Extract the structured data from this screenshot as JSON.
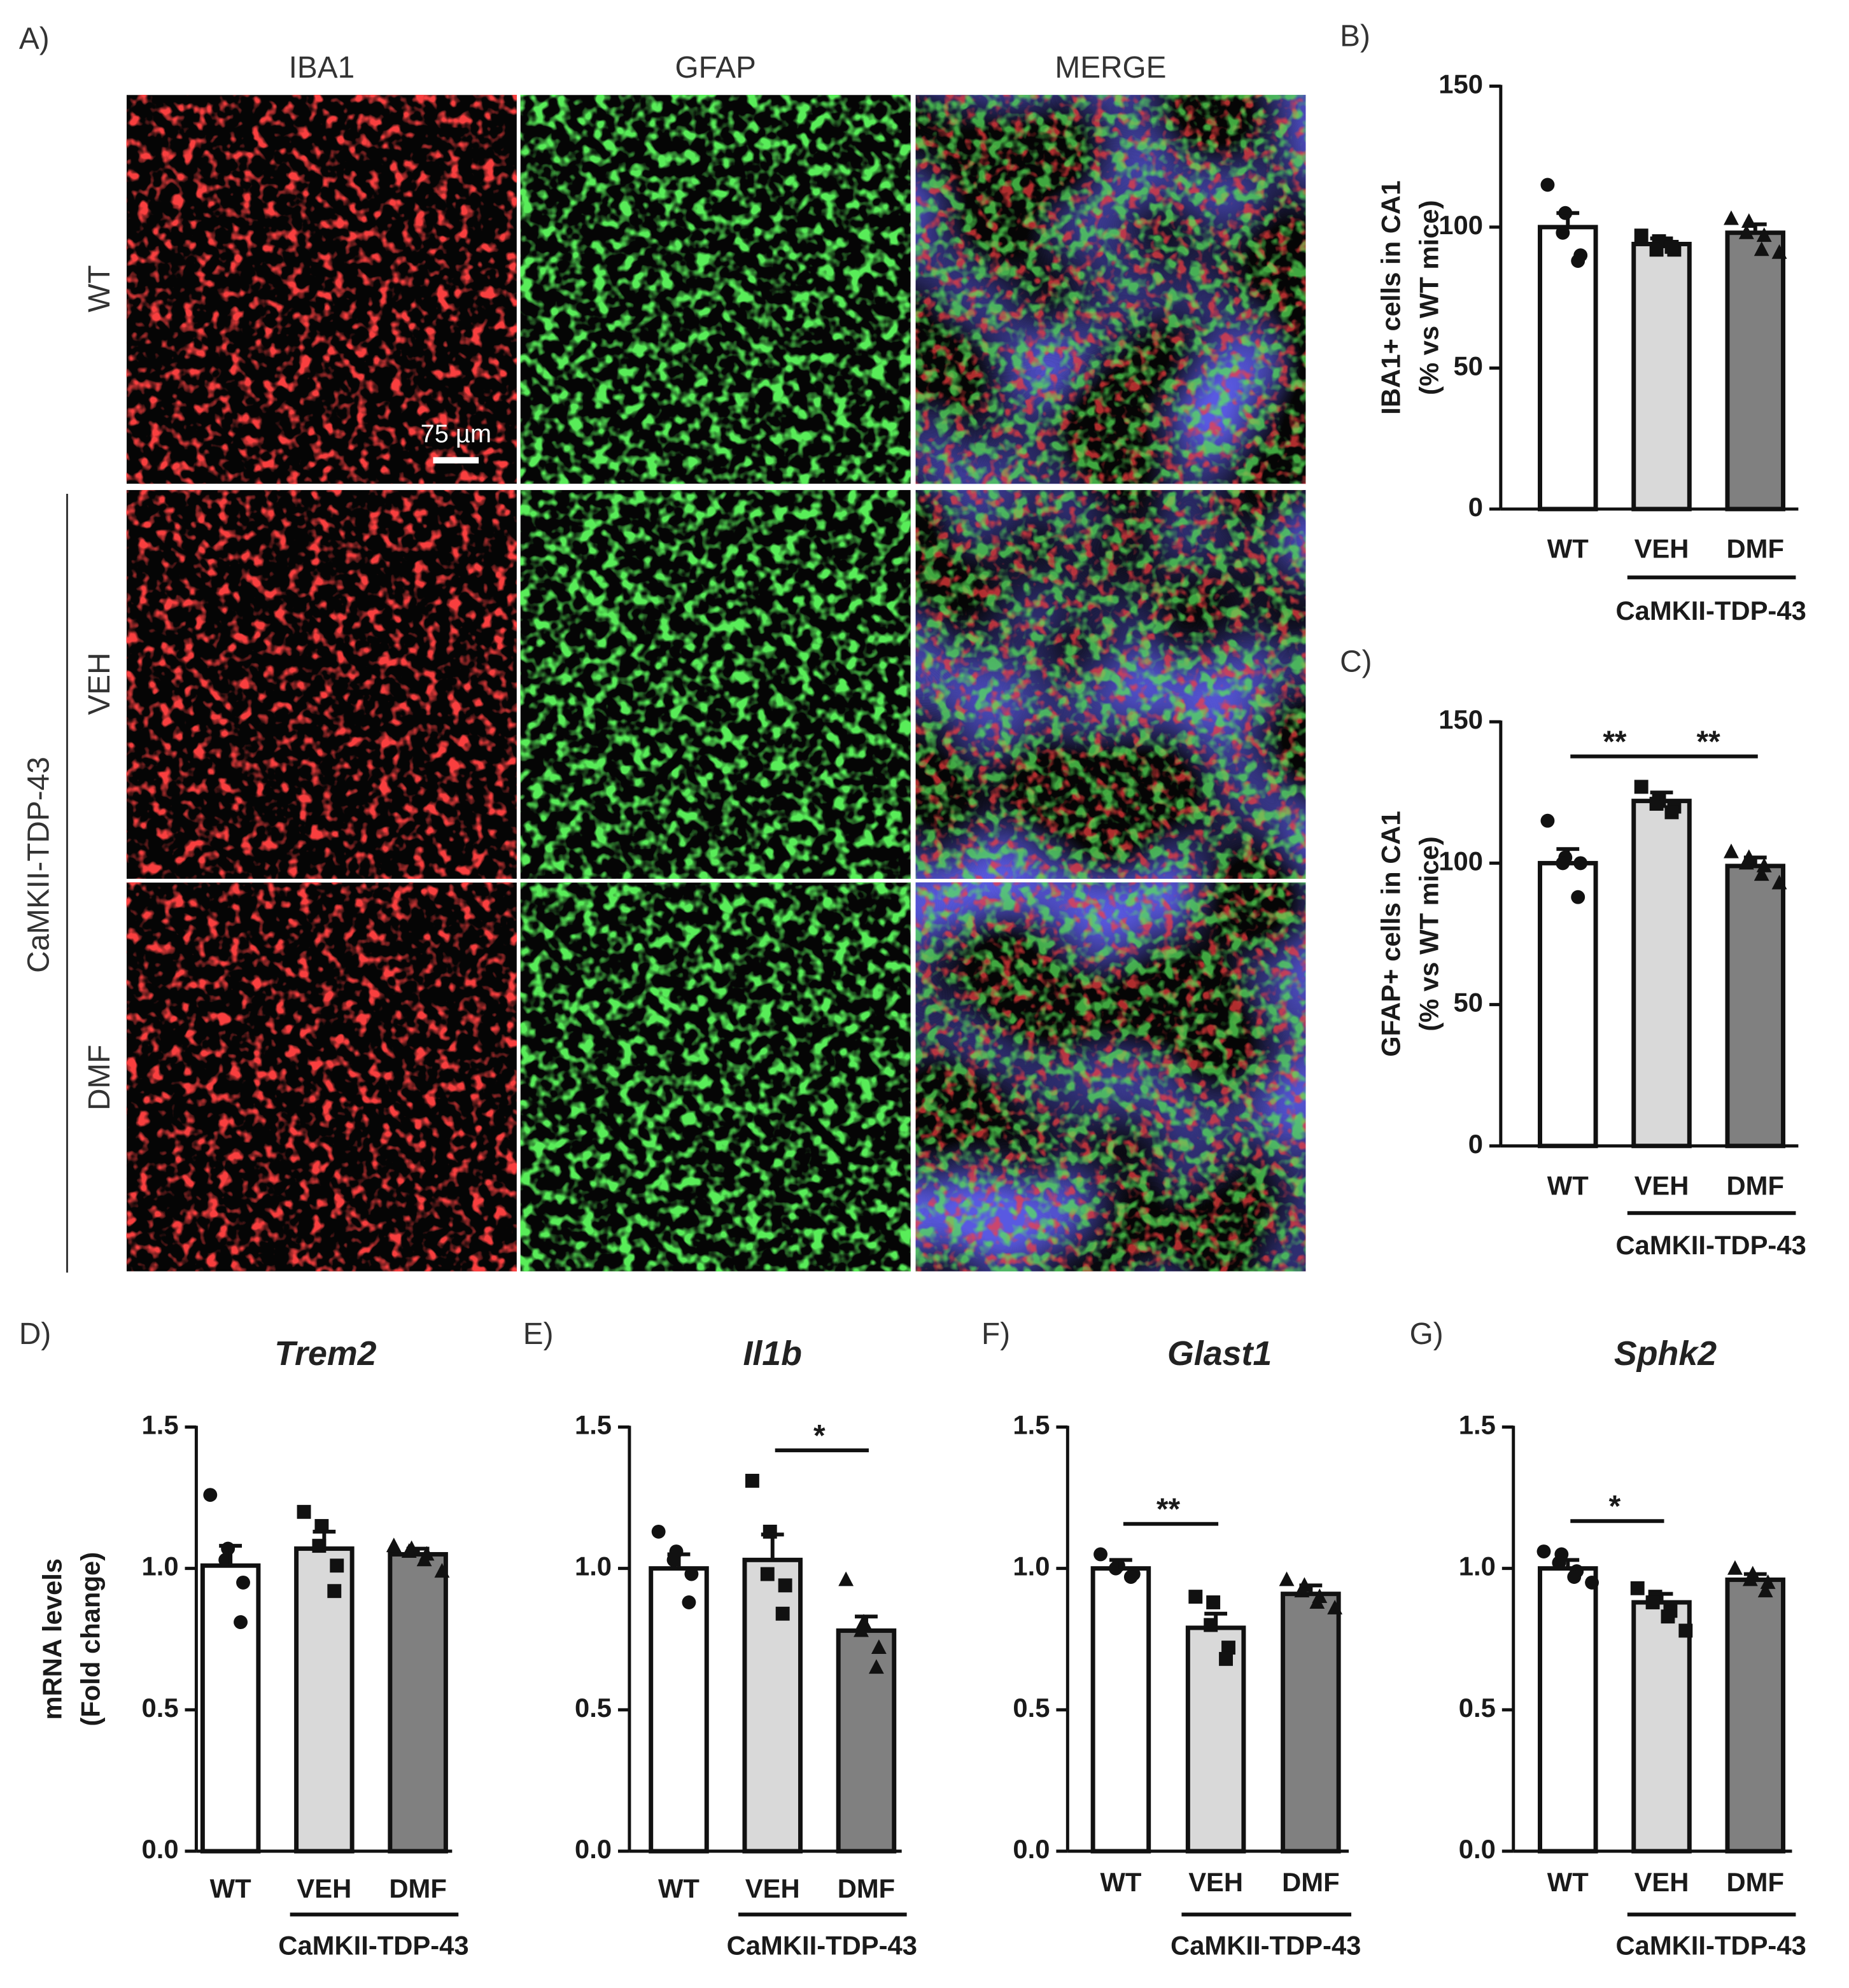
{
  "micrographs": {
    "label": "A)",
    "columns": [
      "IBA1",
      "GFAP",
      "MERGE"
    ],
    "rows": [
      "WT",
      "VEH",
      "DMF"
    ],
    "group": "CaMKII-TDP-43",
    "scale_bar": "75 µm"
  },
  "chart_data": [
    {
      "type": "bar",
      "label": "B)",
      "ylabel": [
        "IBA1+ cells in CA1",
        "(% vs WT mice)"
      ],
      "categories": [
        "WT",
        "VEH",
        "DMF"
      ],
      "colors": [
        "#ffffff",
        "#d9d9d9",
        "#808080"
      ],
      "values": [
        100,
        94,
        98
      ],
      "errors": [
        5,
        2,
        3
      ],
      "points": [
        [
          115,
          105,
          98,
          90,
          88
        ],
        [
          97,
          95,
          92,
          92,
          93
        ],
        [
          103,
          102,
          98,
          97,
          92,
          91
        ]
      ],
      "ylim": [
        0,
        150
      ],
      "yticks": [
        0,
        50,
        100,
        150
      ],
      "group_label": "CaMKII-TDP-43",
      "annotations": []
    },
    {
      "type": "bar",
      "label": "C)",
      "ylabel": [
        "GFAP+ cells in CA1",
        "(% vs WT mice)"
      ],
      "categories": [
        "WT",
        "VEH",
        "DMF"
      ],
      "colors": [
        "#ffffff",
        "#d9d9d9",
        "#808080"
      ],
      "values": [
        100,
        122,
        99
      ],
      "errors": [
        5,
        3,
        3
      ],
      "points": [
        [
          115,
          102,
          100,
          100,
          88
        ],
        [
          127,
          122,
          121,
          120,
          118
        ],
        [
          104,
          102,
          100,
          99,
          96,
          93
        ]
      ],
      "ylim": [
        0,
        150
      ],
      "yticks": [
        0,
        50,
        100,
        150
      ],
      "group_label": "CaMKII-TDP-43",
      "annotations": [
        {
          "text": "**",
          "between": [
            "WT",
            "VEH"
          ]
        },
        {
          "text": "**",
          "between": [
            "VEH",
            "DMF"
          ]
        }
      ]
    },
    {
      "type": "bar",
      "label": "D)",
      "title": "Trem2",
      "ylabel": [
        "mRNA levels",
        "(Fold change)"
      ],
      "categories": [
        "WT",
        "VEH",
        "DMF"
      ],
      "colors": [
        "#ffffff",
        "#d9d9d9",
        "#808080"
      ],
      "values": [
        1.01,
        1.07,
        1.05
      ],
      "errors": [
        0.07,
        0.06,
        0.02
      ],
      "points": [
        [
          1.26,
          1.07,
          1.03,
          0.95,
          0.81
        ],
        [
          1.2,
          1.15,
          1.08,
          1.01,
          0.92
        ],
        [
          1.08,
          1.07,
          1.06,
          1.05,
          1.03,
          0.99
        ]
      ],
      "ylim": [
        0,
        1.5
      ],
      "yticks": [
        {
          "value": 0,
          "label": "0.0"
        },
        0.5,
        {
          "value": 1,
          "label": "1.0"
        },
        1.5
      ],
      "group_label": "CaMKII-TDP-43",
      "annotations": []
    },
    {
      "type": "bar",
      "label": "E)",
      "title": "Il1b",
      "categories": [
        "WT",
        "VEH",
        "DMF"
      ],
      "colors": [
        "#ffffff",
        "#d9d9d9",
        "#808080"
      ],
      "values": [
        1.0,
        1.03,
        0.78
      ],
      "errors": [
        0.05,
        0.09,
        0.05
      ],
      "points": [
        [
          1.13,
          1.06,
          1.03,
          0.98,
          0.88
        ],
        [
          1.31,
          1.13,
          0.98,
          0.94,
          0.84
        ],
        [
          0.96,
          0.81,
          0.78,
          0.72,
          0.65
        ]
      ],
      "ylim": [
        0,
        1.5
      ],
      "yticks": [
        {
          "value": 0,
          "label": "0.0"
        },
        0.5,
        {
          "value": 1,
          "label": "1.0"
        },
        1.5
      ],
      "group_label": "CaMKII-TDP-43",
      "annotations": [
        {
          "text": "*",
          "between": [
            "VEH",
            "DMF"
          ]
        }
      ]
    },
    {
      "type": "bar",
      "label": "F)",
      "title": "Glast1",
      "categories": [
        "WT",
        "VEH",
        "DMF"
      ],
      "colors": [
        "#ffffff",
        "#d9d9d9",
        "#808080"
      ],
      "values": [
        1.0,
        0.79,
        0.91
      ],
      "errors": [
        0.03,
        0.05,
        0.03
      ],
      "points": [
        [
          1.05,
          1.01,
          1.0,
          0.98,
          0.97
        ],
        [
          0.9,
          0.88,
          0.8,
          0.72,
          0.68
        ],
        [
          0.96,
          0.94,
          0.92,
          0.9,
          0.88,
          0.86
        ]
      ],
      "ylim": [
        0,
        1.5
      ],
      "yticks": [
        {
          "value": 0,
          "label": "0.0"
        },
        0.5,
        {
          "value": 1,
          "label": "1.0"
        },
        1.5
      ],
      "group_label": "CaMKII-TDP-43",
      "annotations": [
        {
          "text": "**",
          "between": [
            "WT",
            "VEH"
          ]
        }
      ]
    },
    {
      "type": "bar",
      "label": "G)",
      "title": "Sphk2",
      "categories": [
        "WT",
        "VEH",
        "DMF"
      ],
      "colors": [
        "#ffffff",
        "#d9d9d9",
        "#808080"
      ],
      "values": [
        1.0,
        0.88,
        0.96
      ],
      "errors": [
        0.03,
        0.03,
        0.02
      ],
      "points": [
        [
          1.06,
          1.05,
          1.02,
          0.99,
          0.97,
          0.95
        ],
        [
          0.93,
          0.9,
          0.88,
          0.85,
          0.83,
          0.78
        ],
        [
          1.0,
          0.98,
          0.96,
          0.95,
          0.92
        ]
      ],
      "ylim": [
        0,
        1.5
      ],
      "yticks": [
        {
          "value": 0,
          "label": "0.0"
        },
        0.5,
        {
          "value": 1,
          "label": "1.0"
        },
        1.5
      ],
      "group_label": "CaMKII-TDP-43",
      "annotations": [
        {
          "text": "*",
          "between": [
            "WT",
            "VEH"
          ]
        }
      ]
    }
  ]
}
